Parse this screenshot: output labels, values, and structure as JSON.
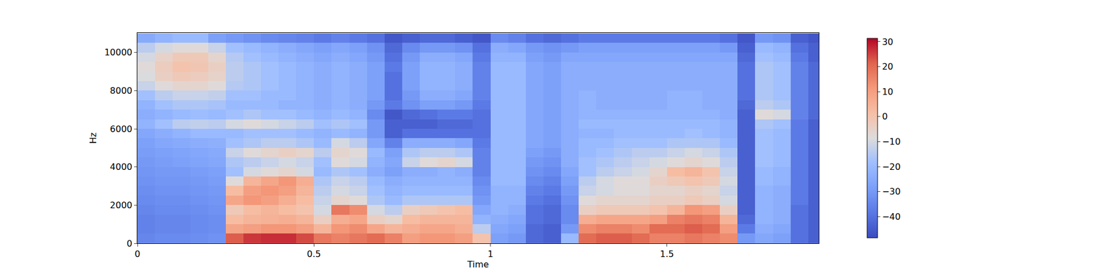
{
  "chart_data": {
    "type": "heatmap",
    "xlabel": "Time",
    "ylabel": "Hz",
    "xlim": [
      0,
      1.93
    ],
    "ylim": [
      0,
      11025
    ],
    "xticks": [
      0,
      0.5,
      1,
      1.5
    ],
    "yticks": [
      0,
      2000,
      4000,
      6000,
      8000,
      10000
    ],
    "colorbar_range": [
      -48.5,
      31.3
    ],
    "colorbar_ticks": [
      {
        "value": -40,
        "label": "−40"
      },
      {
        "value": -30,
        "label": "−30"
      },
      {
        "value": -20,
        "label": "−20"
      },
      {
        "value": -10,
        "label": "−10"
      },
      0,
      10,
      20,
      30
    ],
    "x": [
      0.025,
      0.075,
      0.125,
      0.175,
      0.225,
      0.275,
      0.325,
      0.375,
      0.425,
      0.475,
      0.525,
      0.575,
      0.625,
      0.675,
      0.725,
      0.775,
      0.825,
      0.875,
      0.925,
      0.975,
      1.025,
      1.075,
      1.125,
      1.175,
      1.225,
      1.275,
      1.325,
      1.375,
      1.425,
      1.475,
      1.525,
      1.575,
      1.625,
      1.675,
      1.725,
      1.775,
      1.825,
      1.875,
      1.925
    ],
    "y": [
      250,
      750,
      1250,
      1750,
      2250,
      2750,
      3250,
      3750,
      4250,
      4750,
      5250,
      5750,
      6250,
      6750,
      7250,
      7750,
      8250,
      8750,
      9250,
      9750,
      10250,
      10750
    ],
    "cells": [
      [
        -35,
        -36,
        -36,
        -35,
        -34,
        -33,
        -32,
        -31,
        -30,
        -29,
        -28,
        -26,
        -22,
        -24,
        -22,
        -18,
        -12,
        -9,
        -8,
        -10,
        -14,
        -25
      ],
      [
        -34,
        -35,
        -35,
        -34,
        -33,
        -32,
        -31,
        -30,
        -29,
        -28,
        -26,
        -24,
        -18,
        -22,
        -18,
        -14,
        -8,
        -4,
        -3,
        -5,
        -10,
        -22
      ],
      [
        -34,
        -35,
        -35,
        -34,
        -33,
        -32,
        -31,
        -30,
        -28,
        -27,
        -25,
        -22,
        -14,
        -20,
        -16,
        -12,
        -6,
        -2,
        0,
        -2,
        -8,
        -20
      ],
      [
        -33,
        -34,
        -34,
        -33,
        -32,
        -31,
        -30,
        -29,
        -27,
        -26,
        -24,
        -20,
        -13,
        -19,
        -16,
        -12,
        -6,
        -3,
        -1,
        -2,
        -8,
        -20
      ],
      [
        -32,
        -33,
        -33,
        -32,
        -31,
        -30,
        -29,
        -28,
        -26,
        -25,
        -23,
        -20,
        -14,
        -20,
        -17,
        -13,
        -8,
        -5,
        -4,
        -6,
        -12,
        -28
      ],
      [
        22,
        8,
        2,
        -2,
        8,
        2,
        -8,
        -18,
        -16,
        -12,
        -18,
        -20,
        -10,
        -18,
        -20,
        -18,
        -15,
        -14,
        -14,
        -15,
        -18,
        -30
      ],
      [
        26,
        10,
        4,
        2,
        12,
        10,
        4,
        -10,
        -14,
        -8,
        -16,
        -18,
        -8,
        -16,
        -20,
        -18,
        -16,
        -16,
        -16,
        -18,
        -20,
        -32
      ],
      [
        27,
        12,
        5,
        4,
        10,
        12,
        8,
        -8,
        -12,
        -6,
        -14,
        -18,
        -10,
        -18,
        -20,
        -20,
        -18,
        -18,
        -18,
        -20,
        -22,
        -34
      ],
      [
        27,
        12,
        6,
        2,
        6,
        10,
        12,
        -6,
        -10,
        -4,
        -14,
        -18,
        -12,
        -18,
        -22,
        -20,
        -20,
        -20,
        -20,
        -22,
        -24,
        -35
      ],
      [
        24,
        10,
        4,
        0,
        2,
        4,
        6,
        -10,
        -12,
        -6,
        -16,
        -20,
        -14,
        -20,
        -22,
        -22,
        -22,
        -22,
        -22,
        -24,
        -26,
        -36
      ],
      [
        18,
        4,
        -4,
        -10,
        -12,
        -14,
        -16,
        -20,
        -18,
        -14,
        -20,
        -22,
        -18,
        -22,
        -24,
        -24,
        -24,
        -24,
        -24,
        -26,
        -28,
        -38
      ],
      [
        16,
        12,
        6,
        18,
        -6,
        -10,
        -12,
        -16,
        -8,
        -6,
        -10,
        -20,
        -16,
        -20,
        -22,
        -22,
        -22,
        -22,
        -22,
        -24,
        -26,
        -36
      ],
      [
        18,
        14,
        8,
        14,
        -8,
        -12,
        -14,
        -18,
        -10,
        -8,
        -14,
        -22,
        -18,
        -22,
        -24,
        -24,
        -24,
        -24,
        -24,
        -26,
        -28,
        -38
      ],
      [
        20,
        8,
        -4,
        -10,
        -16,
        -18,
        -20,
        -24,
        -22,
        -20,
        -26,
        -30,
        -30,
        -34,
        -30,
        -28,
        -28,
        -28,
        -28,
        -30,
        -32,
        -40
      ],
      [
        16,
        4,
        -6,
        -14,
        -20,
        -22,
        -24,
        -28,
        -26,
        -28,
        -36,
        -44,
        -44,
        -46,
        -38,
        -40,
        -40,
        -40,
        -38,
        -40,
        -42,
        -46
      ],
      [
        10,
        6,
        2,
        -4,
        -16,
        -20,
        -22,
        -24,
        -12,
        -16,
        -24,
        -40,
        -44,
        -42,
        -32,
        -30,
        -28,
        -28,
        -28,
        -30,
        -34,
        -44
      ],
      [
        12,
        8,
        4,
        -2,
        -16,
        -20,
        -22,
        -24,
        -8,
        -14,
        -24,
        -40,
        -44,
        -40,
        -28,
        -24,
        -22,
        -22,
        -22,
        -24,
        -30,
        -42
      ],
      [
        12,
        8,
        4,
        0,
        -16,
        -20,
        -22,
        -22,
        -6,
        -14,
        -24,
        -40,
        -42,
        -38,
        -28,
        -24,
        -22,
        -22,
        -22,
        -24,
        -30,
        -42
      ],
      [
        10,
        6,
        4,
        2,
        -16,
        -20,
        -22,
        -24,
        -10,
        -16,
        -26,
        -40,
        -42,
        -38,
        -30,
        -26,
        -24,
        -24,
        -24,
        -26,
        -32,
        -44
      ],
      [
        0,
        -14,
        -22,
        -26,
        -30,
        -32,
        -34,
        -36,
        -36,
        -36,
        -38,
        -40,
        -40,
        -40,
        -38,
        -36,
        -36,
        -36,
        -36,
        -38,
        -40,
        -46
      ],
      [
        -28,
        -26,
        -24,
        -22,
        -22,
        -22,
        -20,
        -20,
        -20,
        -20,
        -20,
        -20,
        -20,
        -20,
        -20,
        -20,
        -20,
        -20,
        -20,
        -22,
        -24,
        -34
      ],
      [
        -30,
        -28,
        -26,
        -24,
        -22,
        -22,
        -20,
        -20,
        -20,
        -20,
        -20,
        -20,
        -20,
        -20,
        -20,
        -20,
        -20,
        -20,
        -20,
        -22,
        -26,
        -36
      ],
      [
        -42,
        -42,
        -40,
        -40,
        -38,
        -36,
        -34,
        -32,
        -30,
        -28,
        -26,
        -26,
        -26,
        -26,
        -26,
        -26,
        -26,
        -26,
        -26,
        -28,
        -30,
        -40
      ],
      [
        -44,
        -44,
        -42,
        -42,
        -40,
        -38,
        -36,
        -34,
        -32,
        -30,
        -28,
        -28,
        -28,
        -28,
        -28,
        -28,
        -28,
        -28,
        -28,
        -30,
        -32,
        -42
      ],
      [
        -20,
        -30,
        -34,
        -34,
        -32,
        -30,
        -28,
        -26,
        -24,
        -24,
        -24,
        -24,
        -24,
        -24,
        -24,
        -24,
        -24,
        -24,
        -24,
        -26,
        -30,
        -40
      ],
      [
        20,
        14,
        6,
        -4,
        -8,
        -12,
        -14,
        -18,
        -18,
        -20,
        -20,
        -22,
        -20,
        -22,
        -22,
        -22,
        -24,
        -24,
        -24,
        -26,
        -28,
        -38
      ],
      [
        22,
        16,
        8,
        -2,
        -6,
        -10,
        -10,
        -14,
        -16,
        -18,
        -20,
        -22,
        -20,
        -22,
        -24,
        -24,
        -24,
        -24,
        -24,
        -26,
        -28,
        -38
      ],
      [
        22,
        16,
        8,
        -2,
        -6,
        -8,
        -8,
        -12,
        -14,
        -16,
        -18,
        -20,
        -20,
        -22,
        -24,
        -24,
        -24,
        -24,
        -24,
        -26,
        -28,
        -38
      ],
      [
        20,
        14,
        8,
        -2,
        -6,
        -8,
        -8,
        -10,
        -12,
        -14,
        -18,
        -20,
        -20,
        -22,
        -24,
        -24,
        -24,
        -24,
        -24,
        -26,
        -28,
        -38
      ],
      [
        16,
        20,
        10,
        0,
        -4,
        -6,
        -4,
        -6,
        -10,
        -14,
        -18,
        -20,
        -20,
        -22,
        -24,
        -24,
        -24,
        -24,
        -24,
        -26,
        -28,
        -38
      ],
      [
        16,
        20,
        16,
        4,
        -4,
        -6,
        -2,
        2,
        -8,
        -12,
        -16,
        -20,
        -20,
        -22,
        -22,
        -22,
        -24,
        -24,
        -24,
        -26,
        -28,
        -38
      ],
      [
        18,
        22,
        18,
        12,
        -2,
        -4,
        0,
        4,
        -6,
        -10,
        -16,
        -18,
        -20,
        -22,
        -22,
        -22,
        -24,
        -24,
        -24,
        -26,
        -28,
        -38
      ],
      [
        16,
        20,
        16,
        10,
        -4,
        -6,
        -2,
        0,
        -8,
        -12,
        -16,
        -20,
        -20,
        -22,
        -24,
        -24,
        -24,
        -24,
        -24,
        -26,
        -28,
        -38
      ],
      [
        14,
        10,
        4,
        -4,
        -10,
        -12,
        -10,
        -12,
        -14,
        -16,
        -20,
        -22,
        -22,
        -24,
        -24,
        -24,
        -24,
        -24,
        -24,
        -26,
        -30,
        -40
      ],
      [
        -30,
        -38,
        -42,
        -44,
        -44,
        -44,
        -44,
        -44,
        -44,
        -44,
        -44,
        -44,
        -44,
        -44,
        -42,
        -40,
        -40,
        -40,
        -40,
        -42,
        -44,
        -46
      ],
      [
        -26,
        -24,
        -22,
        -22,
        -22,
        -22,
        -20,
        -20,
        -18,
        -18,
        -18,
        -18,
        -16,
        -8,
        -14,
        -16,
        -16,
        -16,
        -16,
        -18,
        -20,
        -30
      ],
      [
        -28,
        -26,
        -24,
        -24,
        -24,
        -24,
        -22,
        -22,
        -20,
        -20,
        -20,
        -20,
        -18,
        -10,
        -16,
        -18,
        -18,
        -18,
        -18,
        -20,
        -22,
        -32
      ],
      [
        -40,
        -40,
        -40,
        -40,
        -38,
        -38,
        -38,
        -38,
        -38,
        -38,
        -38,
        -38,
        -38,
        -36,
        -36,
        -36,
        -36,
        -36,
        -36,
        -38,
        -40,
        -44
      ],
      [
        -44,
        -44,
        -44,
        -44,
        -44,
        -44,
        -44,
        -44,
        -44,
        -44,
        -44,
        -44,
        -44,
        -42,
        -42,
        -42,
        -42,
        -42,
        -42,
        -44,
        -44,
        -46
      ]
    ]
  }
}
